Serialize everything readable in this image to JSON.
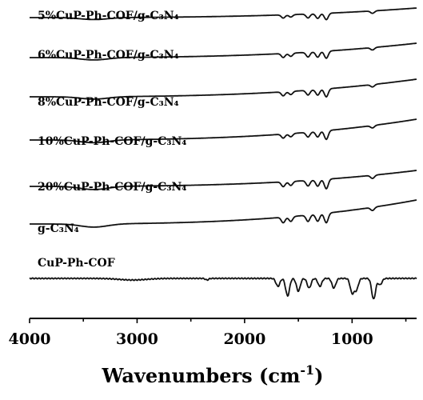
{
  "chart_data": {
    "type": "line",
    "xlabel": "Wavenumbers (cm",
    "xlabel_sup": "-1",
    "xlabel_end": ")",
    "xlim": [
      4000,
      400
    ],
    "x_ticks": [
      4000,
      3000,
      2000,
      1000
    ],
    "x_tick_labels": [
      "4000",
      "3000",
      "2000",
      "1000"
    ],
    "y_axis_visible": false,
    "series": [
      {
        "name": "5%CuP-Ph-COF/g-C₃N₄",
        "key": "s5",
        "features": [
          [
            3400,
            2.5
          ],
          [
            1640,
            4
          ],
          [
            1570,
            3
          ],
          [
            1410,
            5
          ],
          [
            1320,
            6
          ],
          [
            1240,
            8
          ],
          [
            810,
            3
          ]
        ]
      },
      {
        "name": "6%CuP-Ph-COF/g-C₃N₄",
        "key": "s6",
        "features": [
          [
            3400,
            3
          ],
          [
            1640,
            5
          ],
          [
            1570,
            4
          ],
          [
            1410,
            6
          ],
          [
            1320,
            7
          ],
          [
            1240,
            9
          ],
          [
            810,
            3
          ]
        ]
      },
      {
        "name": "8%CuP-Ph-COF/g-C₃N₄",
        "key": "s8",
        "features": [
          [
            3400,
            3
          ],
          [
            1640,
            5
          ],
          [
            1570,
            4
          ],
          [
            1410,
            6
          ],
          [
            1320,
            7
          ],
          [
            1240,
            10
          ],
          [
            810,
            3
          ]
        ]
      },
      {
        "name": "10%CuP-Ph-COF/g-C₃N₄",
        "key": "s10",
        "features": [
          [
            3400,
            3.5
          ],
          [
            1640,
            5
          ],
          [
            1570,
            4
          ],
          [
            1410,
            6
          ],
          [
            1320,
            7
          ],
          [
            1240,
            11
          ],
          [
            810,
            3
          ]
        ]
      },
      {
        "name": "20%CuP-Ph-COF/g-C₃N₄",
        "key": "s20",
        "features": [
          [
            3400,
            4
          ],
          [
            1640,
            6
          ],
          [
            1570,
            5
          ],
          [
            1410,
            7
          ],
          [
            1320,
            8
          ],
          [
            1240,
            12
          ],
          [
            810,
            4
          ]
        ]
      },
      {
        "name": "g-C₃N₄",
        "key": "gcn",
        "features": [
          [
            3400,
            4
          ],
          [
            1640,
            7
          ],
          [
            1570,
            6
          ],
          [
            1410,
            8
          ],
          [
            1320,
            9
          ],
          [
            1240,
            12
          ],
          [
            810,
            4
          ]
        ]
      },
      {
        "name": "CuP-Ph-COF",
        "key": "cof",
        "features": [
          [
            3040,
            2
          ],
          [
            2350,
            2
          ],
          [
            1690,
            10
          ],
          [
            1600,
            22
          ],
          [
            1500,
            16
          ],
          [
            1400,
            12
          ],
          [
            1300,
            10
          ],
          [
            1170,
            12
          ],
          [
            1000,
            18
          ],
          [
            960,
            14
          ],
          [
            800,
            26
          ],
          [
            740,
            8
          ]
        ]
      }
    ]
  }
}
